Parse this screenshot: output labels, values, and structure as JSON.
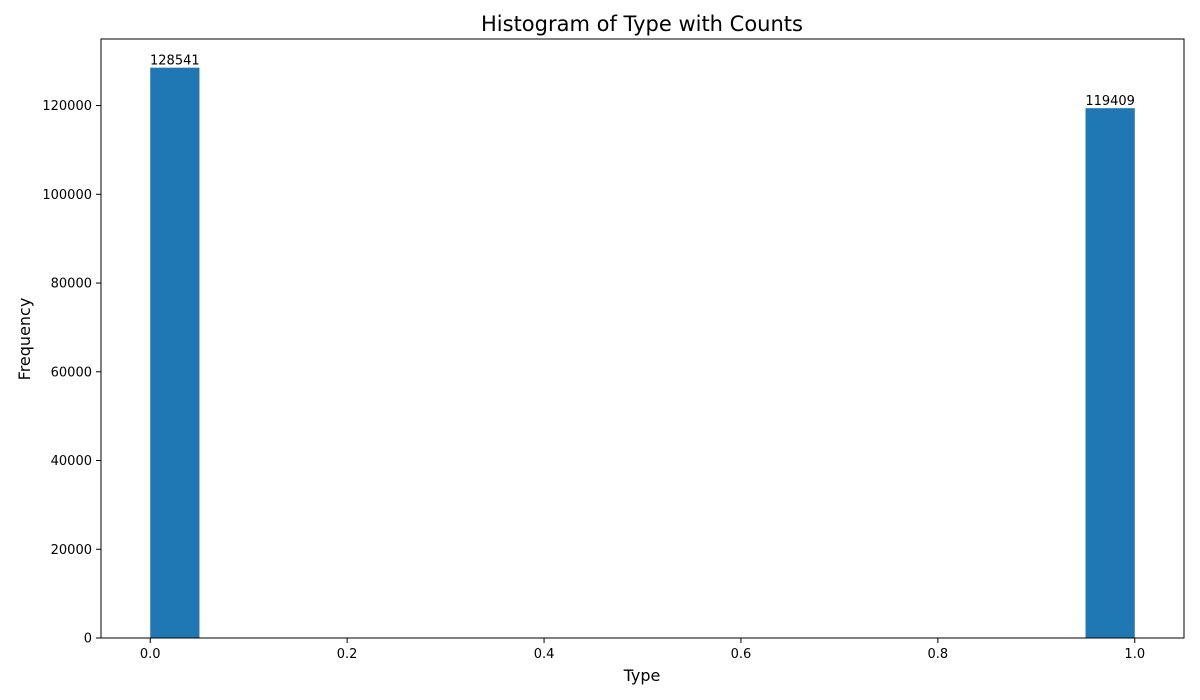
{
  "chart_data": {
    "type": "bar",
    "title": "Histogram of Type with Counts",
    "xlabel": "Type",
    "ylabel": "Frequency",
    "xlim": [
      -0.05,
      1.05
    ],
    "ylim": [
      0,
      135000
    ],
    "grid": false,
    "bin_width": 0.05,
    "bins": [
      {
        "x_start": 0.0,
        "x_end": 0.05,
        "value": 128541,
        "label": "128541"
      },
      {
        "x_start": 0.95,
        "x_end": 1.0,
        "value": 119409,
        "label": "119409"
      }
    ],
    "x_ticks": [
      0.0,
      0.2,
      0.4,
      0.6,
      0.8,
      1.0
    ],
    "x_tick_labels": [
      "0.0",
      "0.2",
      "0.4",
      "0.6",
      "0.8",
      "1.0"
    ],
    "y_ticks": [
      0,
      20000,
      40000,
      60000,
      80000,
      100000,
      120000
    ],
    "y_tick_labels": [
      "0",
      "20000",
      "40000",
      "60000",
      "80000",
      "100000",
      "120000"
    ],
    "bar_color": "#1f77b4"
  }
}
